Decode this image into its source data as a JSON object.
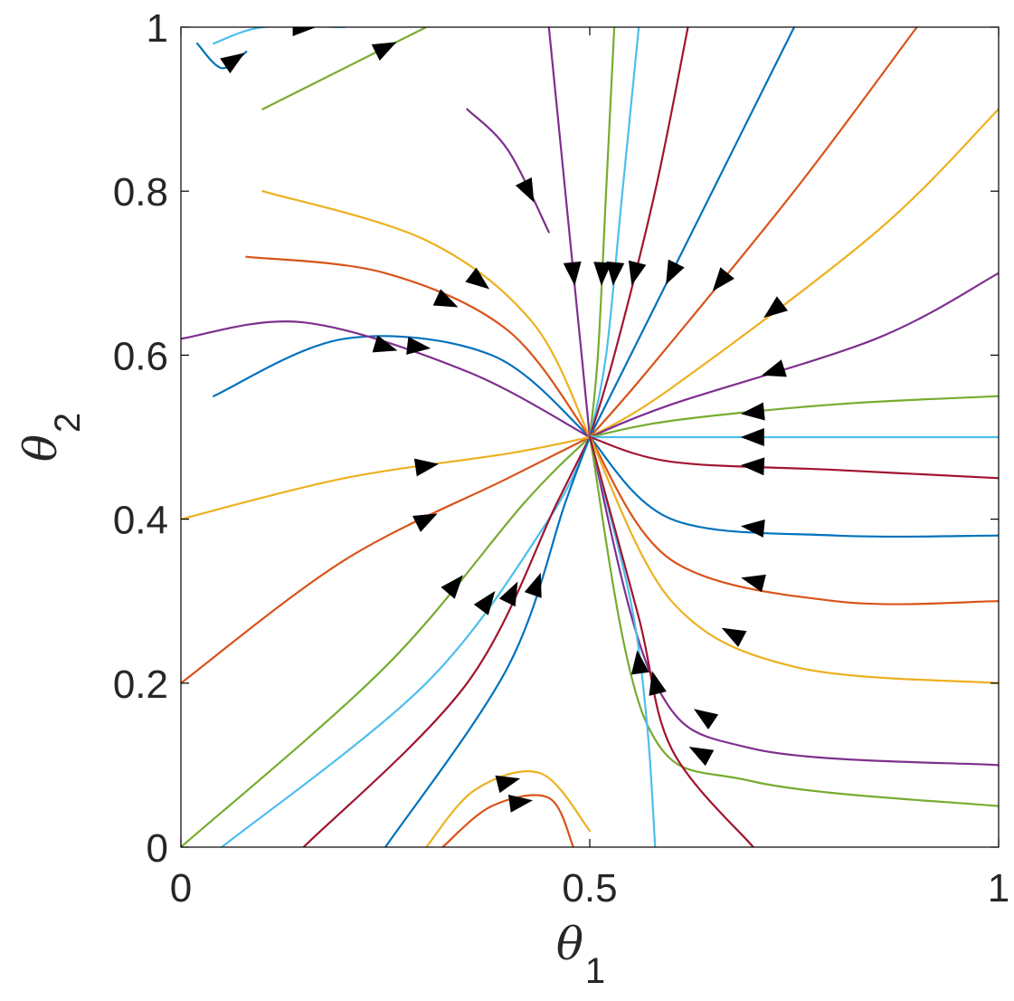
{
  "chart_data": {
    "type": "streamplot",
    "title": "",
    "xlabel": {
      "symbol": "θ",
      "subscript": "1"
    },
    "ylabel": {
      "symbol": "θ",
      "subscript": "2"
    },
    "xlim": [
      0,
      1
    ],
    "ylim": [
      0,
      1
    ],
    "xticks": [
      0,
      0.5,
      1
    ],
    "xtick_labels": [
      "0",
      "0.5",
      "1"
    ],
    "yticks": [
      0,
      0.2,
      0.4,
      0.6,
      0.8,
      1
    ],
    "ytick_labels": [
      "0",
      "0.2",
      "0.4",
      "0.6",
      "0.8",
      "1"
    ],
    "grid": false,
    "legend": "none",
    "fixed_point": {
      "x": 0.5,
      "y": 0.5,
      "kind": "stable node"
    },
    "arrow_color": "#000000",
    "colors": [
      "#0072BD",
      "#D95319",
      "#EDB120",
      "#7E2F8E",
      "#77AC30",
      "#4DBEEE",
      "#A2142F"
    ],
    "streamlines": [
      [
        [
          0.04,
          0.55
        ],
        [
          0.2,
          0.62
        ],
        [
          0.38,
          0.6
        ],
        [
          0.5,
          0.5
        ]
      ],
      [
        [
          0.08,
          0.72
        ],
        [
          0.25,
          0.7
        ],
        [
          0.4,
          0.63
        ],
        [
          0.5,
          0.5
        ]
      ],
      [
        [
          0.1,
          0.8
        ],
        [
          0.3,
          0.74
        ],
        [
          0.43,
          0.64
        ],
        [
          0.5,
          0.5
        ]
      ],
      [
        [
          0.0,
          0.62
        ],
        [
          0.15,
          0.64
        ],
        [
          0.35,
          0.58
        ],
        [
          0.5,
          0.5
        ]
      ],
      [
        [
          0.0,
          0.0
        ],
        [
          0.25,
          0.22
        ],
        [
          0.42,
          0.42
        ],
        [
          0.5,
          0.5
        ]
      ],
      [
        [
          0.05,
          0.0
        ],
        [
          0.3,
          0.2
        ],
        [
          0.45,
          0.4
        ],
        [
          0.5,
          0.5
        ]
      ],
      [
        [
          0.15,
          0.0
        ],
        [
          0.35,
          0.2
        ],
        [
          0.46,
          0.42
        ],
        [
          0.5,
          0.5
        ]
      ],
      [
        [
          0.25,
          0.0
        ],
        [
          0.4,
          0.22
        ],
        [
          0.47,
          0.42
        ],
        [
          0.5,
          0.5
        ]
      ],
      [
        [
          0.0,
          0.2
        ],
        [
          0.2,
          0.35
        ],
        [
          0.4,
          0.45
        ],
        [
          0.5,
          0.5
        ]
      ],
      [
        [
          0.0,
          0.4
        ],
        [
          0.2,
          0.45
        ],
        [
          0.4,
          0.48
        ],
        [
          0.5,
          0.5
        ]
      ],
      [
        [
          0.45,
          1.0
        ],
        [
          0.47,
          0.8
        ],
        [
          0.49,
          0.6
        ],
        [
          0.5,
          0.5
        ]
      ],
      [
        [
          0.53,
          1.0
        ],
        [
          0.52,
          0.8
        ],
        [
          0.51,
          0.6
        ],
        [
          0.5,
          0.5
        ]
      ],
      [
        [
          0.56,
          1.0
        ],
        [
          0.54,
          0.8
        ],
        [
          0.52,
          0.6
        ],
        [
          0.5,
          0.5
        ]
      ],
      [
        [
          0.62,
          1.0
        ],
        [
          0.58,
          0.8
        ],
        [
          0.53,
          0.6
        ],
        [
          0.5,
          0.5
        ]
      ],
      [
        [
          0.75,
          1.0
        ],
        [
          0.65,
          0.8
        ],
        [
          0.55,
          0.6
        ],
        [
          0.5,
          0.5
        ]
      ],
      [
        [
          0.9,
          1.0
        ],
        [
          0.75,
          0.8
        ],
        [
          0.57,
          0.58
        ],
        [
          0.5,
          0.5
        ]
      ],
      [
        [
          1.0,
          0.9
        ],
        [
          0.85,
          0.75
        ],
        [
          0.6,
          0.56
        ],
        [
          0.5,
          0.5
        ]
      ],
      [
        [
          1.0,
          0.7
        ],
        [
          0.85,
          0.62
        ],
        [
          0.6,
          0.54
        ],
        [
          0.5,
          0.5
        ]
      ],
      [
        [
          1.0,
          0.55
        ],
        [
          0.8,
          0.54
        ],
        [
          0.6,
          0.52
        ],
        [
          0.5,
          0.5
        ]
      ],
      [
        [
          1.0,
          0.5
        ],
        [
          0.8,
          0.5
        ],
        [
          0.6,
          0.5
        ],
        [
          0.5,
          0.5
        ]
      ],
      [
        [
          1.0,
          0.45
        ],
        [
          0.8,
          0.46
        ],
        [
          0.6,
          0.47
        ],
        [
          0.5,
          0.5
        ]
      ],
      [
        [
          1.0,
          0.38
        ],
        [
          0.8,
          0.38
        ],
        [
          0.6,
          0.4
        ],
        [
          0.5,
          0.5
        ]
      ],
      [
        [
          1.0,
          0.3
        ],
        [
          0.8,
          0.3
        ],
        [
          0.6,
          0.35
        ],
        [
          0.5,
          0.5
        ]
      ],
      [
        [
          1.0,
          0.2
        ],
        [
          0.75,
          0.22
        ],
        [
          0.6,
          0.3
        ],
        [
          0.5,
          0.5
        ]
      ],
      [
        [
          1.0,
          0.1
        ],
        [
          0.7,
          0.12
        ],
        [
          0.58,
          0.2
        ],
        [
          0.5,
          0.5
        ]
      ],
      [
        [
          1.0,
          0.05
        ],
        [
          0.7,
          0.08
        ],
        [
          0.57,
          0.15
        ],
        [
          0.5,
          0.5
        ]
      ],
      [
        [
          0.58,
          0.0
        ],
        [
          0.57,
          0.15
        ],
        [
          0.55,
          0.3
        ],
        [
          0.5,
          0.5
        ]
      ],
      [
        [
          0.7,
          0.0
        ],
        [
          0.6,
          0.12
        ],
        [
          0.56,
          0.28
        ],
        [
          0.5,
          0.5
        ]
      ],
      [
        [
          0.02,
          0.98
        ],
        [
          0.05,
          0.95
        ],
        [
          0.08,
          0.97
        ]
      ],
      [
        [
          0.32,
          0.0
        ],
        [
          0.38,
          0.05
        ],
        [
          0.45,
          0.06
        ],
        [
          0.48,
          0.0
        ]
      ],
      [
        [
          0.3,
          0.0
        ],
        [
          0.36,
          0.07
        ],
        [
          0.44,
          0.09
        ],
        [
          0.5,
          0.02
        ]
      ],
      [
        [
          0.35,
          0.9
        ],
        [
          0.4,
          0.85
        ],
        [
          0.45,
          0.75
        ]
      ],
      [
        [
          0.1,
          0.9
        ],
        [
          0.2,
          0.95
        ],
        [
          0.3,
          1.0
        ]
      ],
      [
        [
          0.04,
          0.98
        ],
        [
          0.1,
          1.0
        ],
        [
          0.2,
          1.0
        ]
      ]
    ]
  }
}
